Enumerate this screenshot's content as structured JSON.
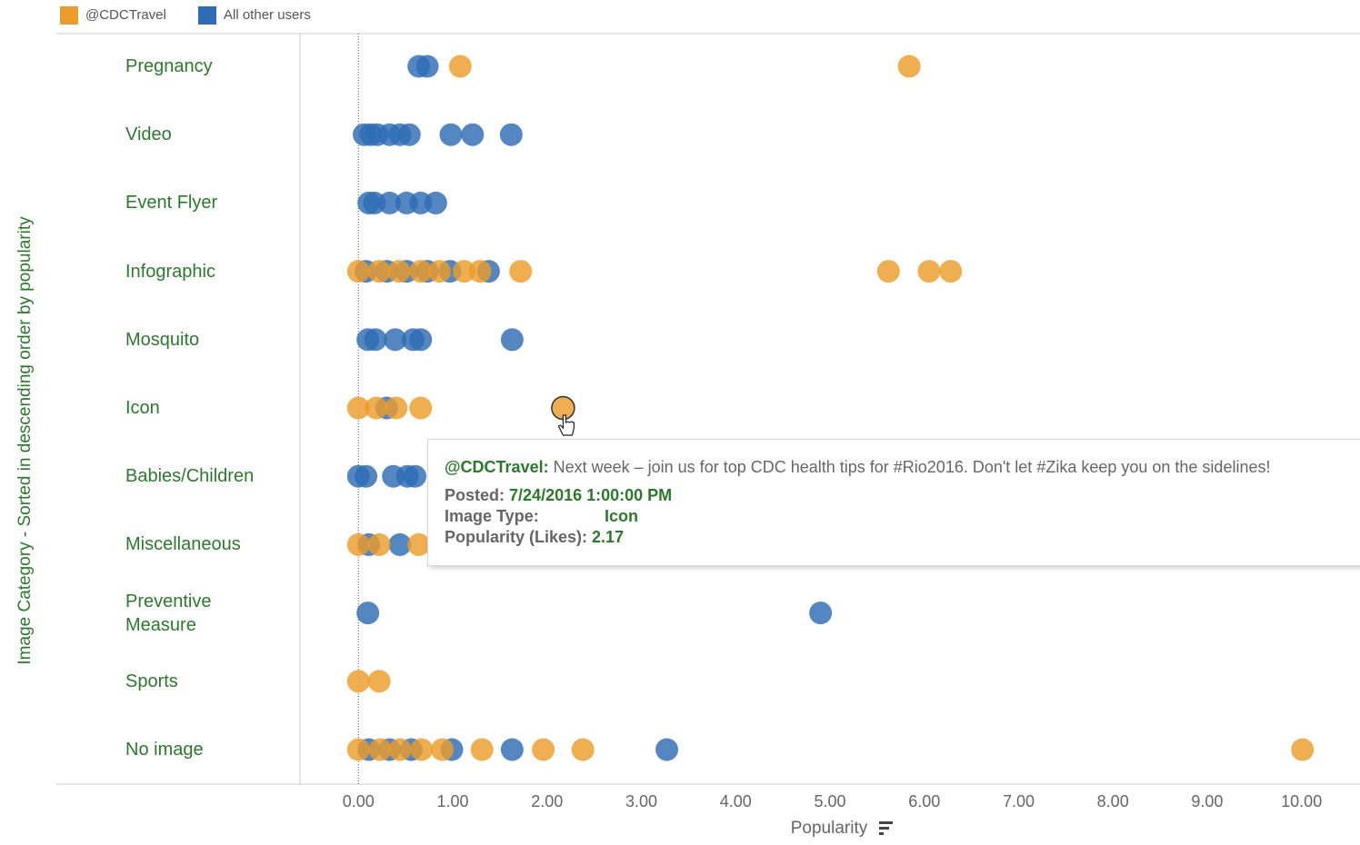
{
  "chart_data": {
    "type": "strip",
    "legend": {
      "position": "top-left"
    },
    "y_label": "Image Category - Sorted in descending order by popularity",
    "x_label": "Popularity",
    "categories": [
      "Pregnancy",
      "Video",
      "Event Flyer",
      "Infographic",
      "Mosquito",
      "Icon",
      "Babies/Children",
      "Miscellaneous",
      "Preventive Measure",
      "Sports",
      "No image"
    ],
    "xlim": [
      -0.61,
      10.62
    ],
    "xticks": [
      {
        "value": 0,
        "label": "0.00"
      },
      {
        "value": 1,
        "label": "1.00"
      },
      {
        "value": 2,
        "label": "2.00"
      },
      {
        "value": 3,
        "label": "3.00"
      },
      {
        "value": 4,
        "label": "4.00"
      },
      {
        "value": 5,
        "label": "5.00"
      },
      {
        "value": 6,
        "label": "6.00"
      },
      {
        "value": 7,
        "label": "7.00"
      },
      {
        "value": 8,
        "label": "8.00"
      },
      {
        "value": 9,
        "label": "9.00"
      },
      {
        "value": 10,
        "label": "10.00"
      }
    ],
    "series": [
      {
        "name": "All other users",
        "color": "#2e6db5",
        "values": [
          [
            0.64,
            0.73
          ],
          [
            0.06,
            0.13,
            0.2,
            0.33,
            0.44,
            0.54,
            0.98,
            1.21,
            1.62
          ],
          [
            0.11,
            0.17,
            0.33,
            0.51,
            0.66,
            0.82
          ],
          [
            0.08,
            0.3,
            0.51,
            0.73,
            0.97,
            1.38
          ],
          [
            0.1,
            0.18,
            0.39,
            0.58,
            0.66,
            1.63
          ],
          [
            0.3
          ],
          [
            0,
            0.08,
            0.37,
            0.52,
            0.6
          ],
          [
            0.11,
            0.44
          ],
          [
            0.1,
            4.9
          ],
          [],
          [
            0.11,
            0.33,
            0.56,
            0.99,
            1.63,
            3.27
          ]
        ]
      },
      {
        "name": "@CDCTravel",
        "color": "#eb9c2a",
        "values": [
          [
            1.08,
            5.84
          ],
          [],
          [],
          [
            0,
            0.22,
            0.43,
            0.66,
            0.86,
            1.12,
            1.29,
            1.72,
            5.62,
            6.05,
            6.28
          ],
          [],
          [
            0,
            0.19,
            0.4,
            0.66,
            2.17
          ],
          [],
          [
            0,
            0.22,
            0.64
          ],
          [],
          [
            0,
            0.22
          ],
          [
            0,
            0.23,
            0.44,
            0.67,
            0.89,
            1.31,
            1.96,
            2.38,
            10.01
          ]
        ]
      }
    ],
    "legend_order": [
      1,
      0
    ],
    "tooltip": {
      "user": "@CDCTravel:",
      "text": "Next week – join us for top CDC health tips for #Rio2016. Don't let #Zika keep you on the sidelines!",
      "posted_label": "Posted:",
      "posted": "7/24/2016 1:00:00 PM",
      "type_label": "Image Type:",
      "type": "Icon",
      "pop_label": "Popularity (Likes):",
      "pop": "2.17"
    }
  }
}
